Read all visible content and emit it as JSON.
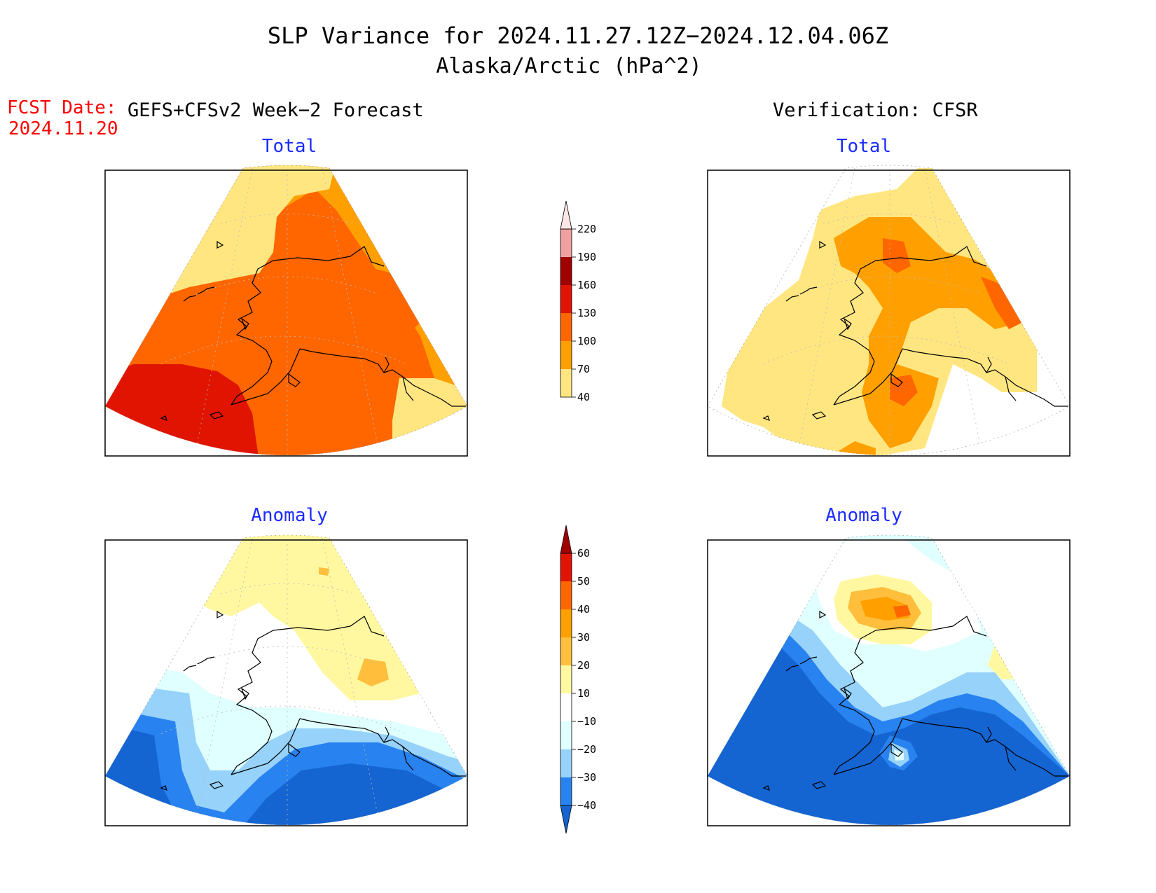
{
  "title": {
    "line1": "SLP Variance for 2024.11.27.12Z−2024.12.04.06Z",
    "line2": "Alaska/Arctic (hPa^2)"
  },
  "fcst": {
    "label": "FCST Date:",
    "date": "2024.11.20"
  },
  "left_header": "GEFS+CFSv2 Week−2 Forecast",
  "right_header": "Verification: CFSR",
  "panels": {
    "tl": "Total",
    "tr": "Total",
    "bl": "Anomaly",
    "br": "Anomaly"
  },
  "colors": {
    "title_red": "#ff0000",
    "panel_title_blue": "#1c2cff"
  },
  "total_colorbar": {
    "levels": [
      "40",
      "70",
      "100",
      "130",
      "160",
      "190",
      "220"
    ],
    "colors": [
      "#ffe680",
      "#ffa000",
      "#ff6600",
      "#e01400",
      "#a00000",
      "#f0a0a0",
      "#ffe6e6"
    ],
    "below_color": "#ffffff"
  },
  "anomaly_colorbar": {
    "levels": [
      "−40",
      "−30",
      "−20",
      "−10",
      "10",
      "20",
      "30",
      "40",
      "50",
      "60"
    ],
    "colors": [
      "#1464d2",
      "#2882f0",
      "#96d2fa",
      "#e0ffff",
      "#ffffff",
      "#fff8a0",
      "#ffbe3c",
      "#ffa000",
      "#ff6600",
      "#e01400",
      "#a00000"
    ]
  }
}
